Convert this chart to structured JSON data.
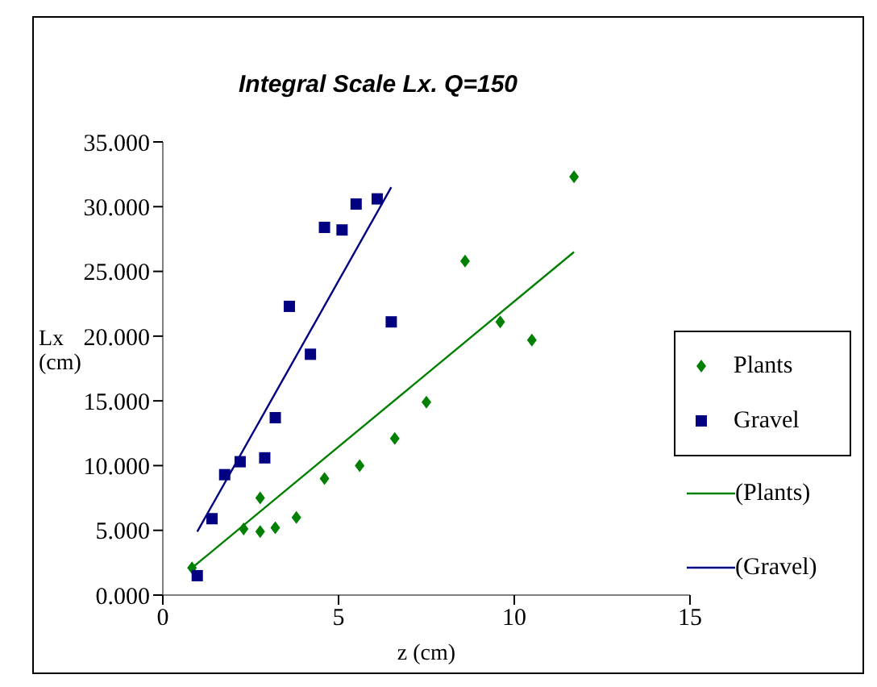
{
  "chart_data": {
    "type": "scatter",
    "title": "Integral Scale Lx. Q=150",
    "xlabel": "z (cm)",
    "ylabel": "Lx (cm)",
    "xlim": [
      0,
      15
    ],
    "xticks": [
      0,
      5,
      10,
      15
    ],
    "ylim": [
      0,
      35
    ],
    "yticks": [
      {
        "value": 0,
        "label": "0.000"
      },
      {
        "value": 5,
        "label": "5.000"
      },
      {
        "value": 10,
        "label": "10.000"
      },
      {
        "value": 15,
        "label": "15.000"
      },
      {
        "value": 20,
        "label": "20.000"
      },
      {
        "value": 25,
        "label": "25.000"
      },
      {
        "value": 30,
        "label": "30.000"
      },
      {
        "value": 35,
        "label": "35.000"
      }
    ],
    "grid": false,
    "legend": "right",
    "series": [
      {
        "name": "Plants",
        "marker": "diamond",
        "color": "#008000",
        "x": [
          0.83,
          2.3,
          2.77,
          2.77,
          3.2,
          3.8,
          4.6,
          5.6,
          6.6,
          7.5,
          8.6,
          9.6,
          10.5,
          11.7
        ],
        "values": [
          2.1,
          5.1,
          7.5,
          4.9,
          5.2,
          6.0,
          9.0,
          10.0,
          12.1,
          14.9,
          25.8,
          21.1,
          19.7,
          32.3
        ]
      },
      {
        "name": "Gravel",
        "marker": "square",
        "color": "#000080",
        "x": [
          0.98,
          1.4,
          1.76,
          2.2,
          2.9,
          3.2,
          3.6,
          4.2,
          4.6,
          5.1,
          5.5,
          6.1,
          6.5
        ],
        "values": [
          1.5,
          5.9,
          9.3,
          10.3,
          10.6,
          13.7,
          22.3,
          18.6,
          28.4,
          28.2,
          30.2,
          30.6,
          21.1
        ]
      },
      {
        "name": "(Plants)",
        "type": "line",
        "marker": "none",
        "line_style": "solid",
        "color": "#008000",
        "x": [
          0.83,
          11.7
        ],
        "values": [
          2.1,
          26.5
        ]
      },
      {
        "name": "(Gravel)",
        "type": "line",
        "marker": "none",
        "line_style": "solid",
        "color": "#000080",
        "x": [
          0.98,
          6.5
        ],
        "values": [
          4.9,
          31.5
        ]
      }
    ]
  }
}
